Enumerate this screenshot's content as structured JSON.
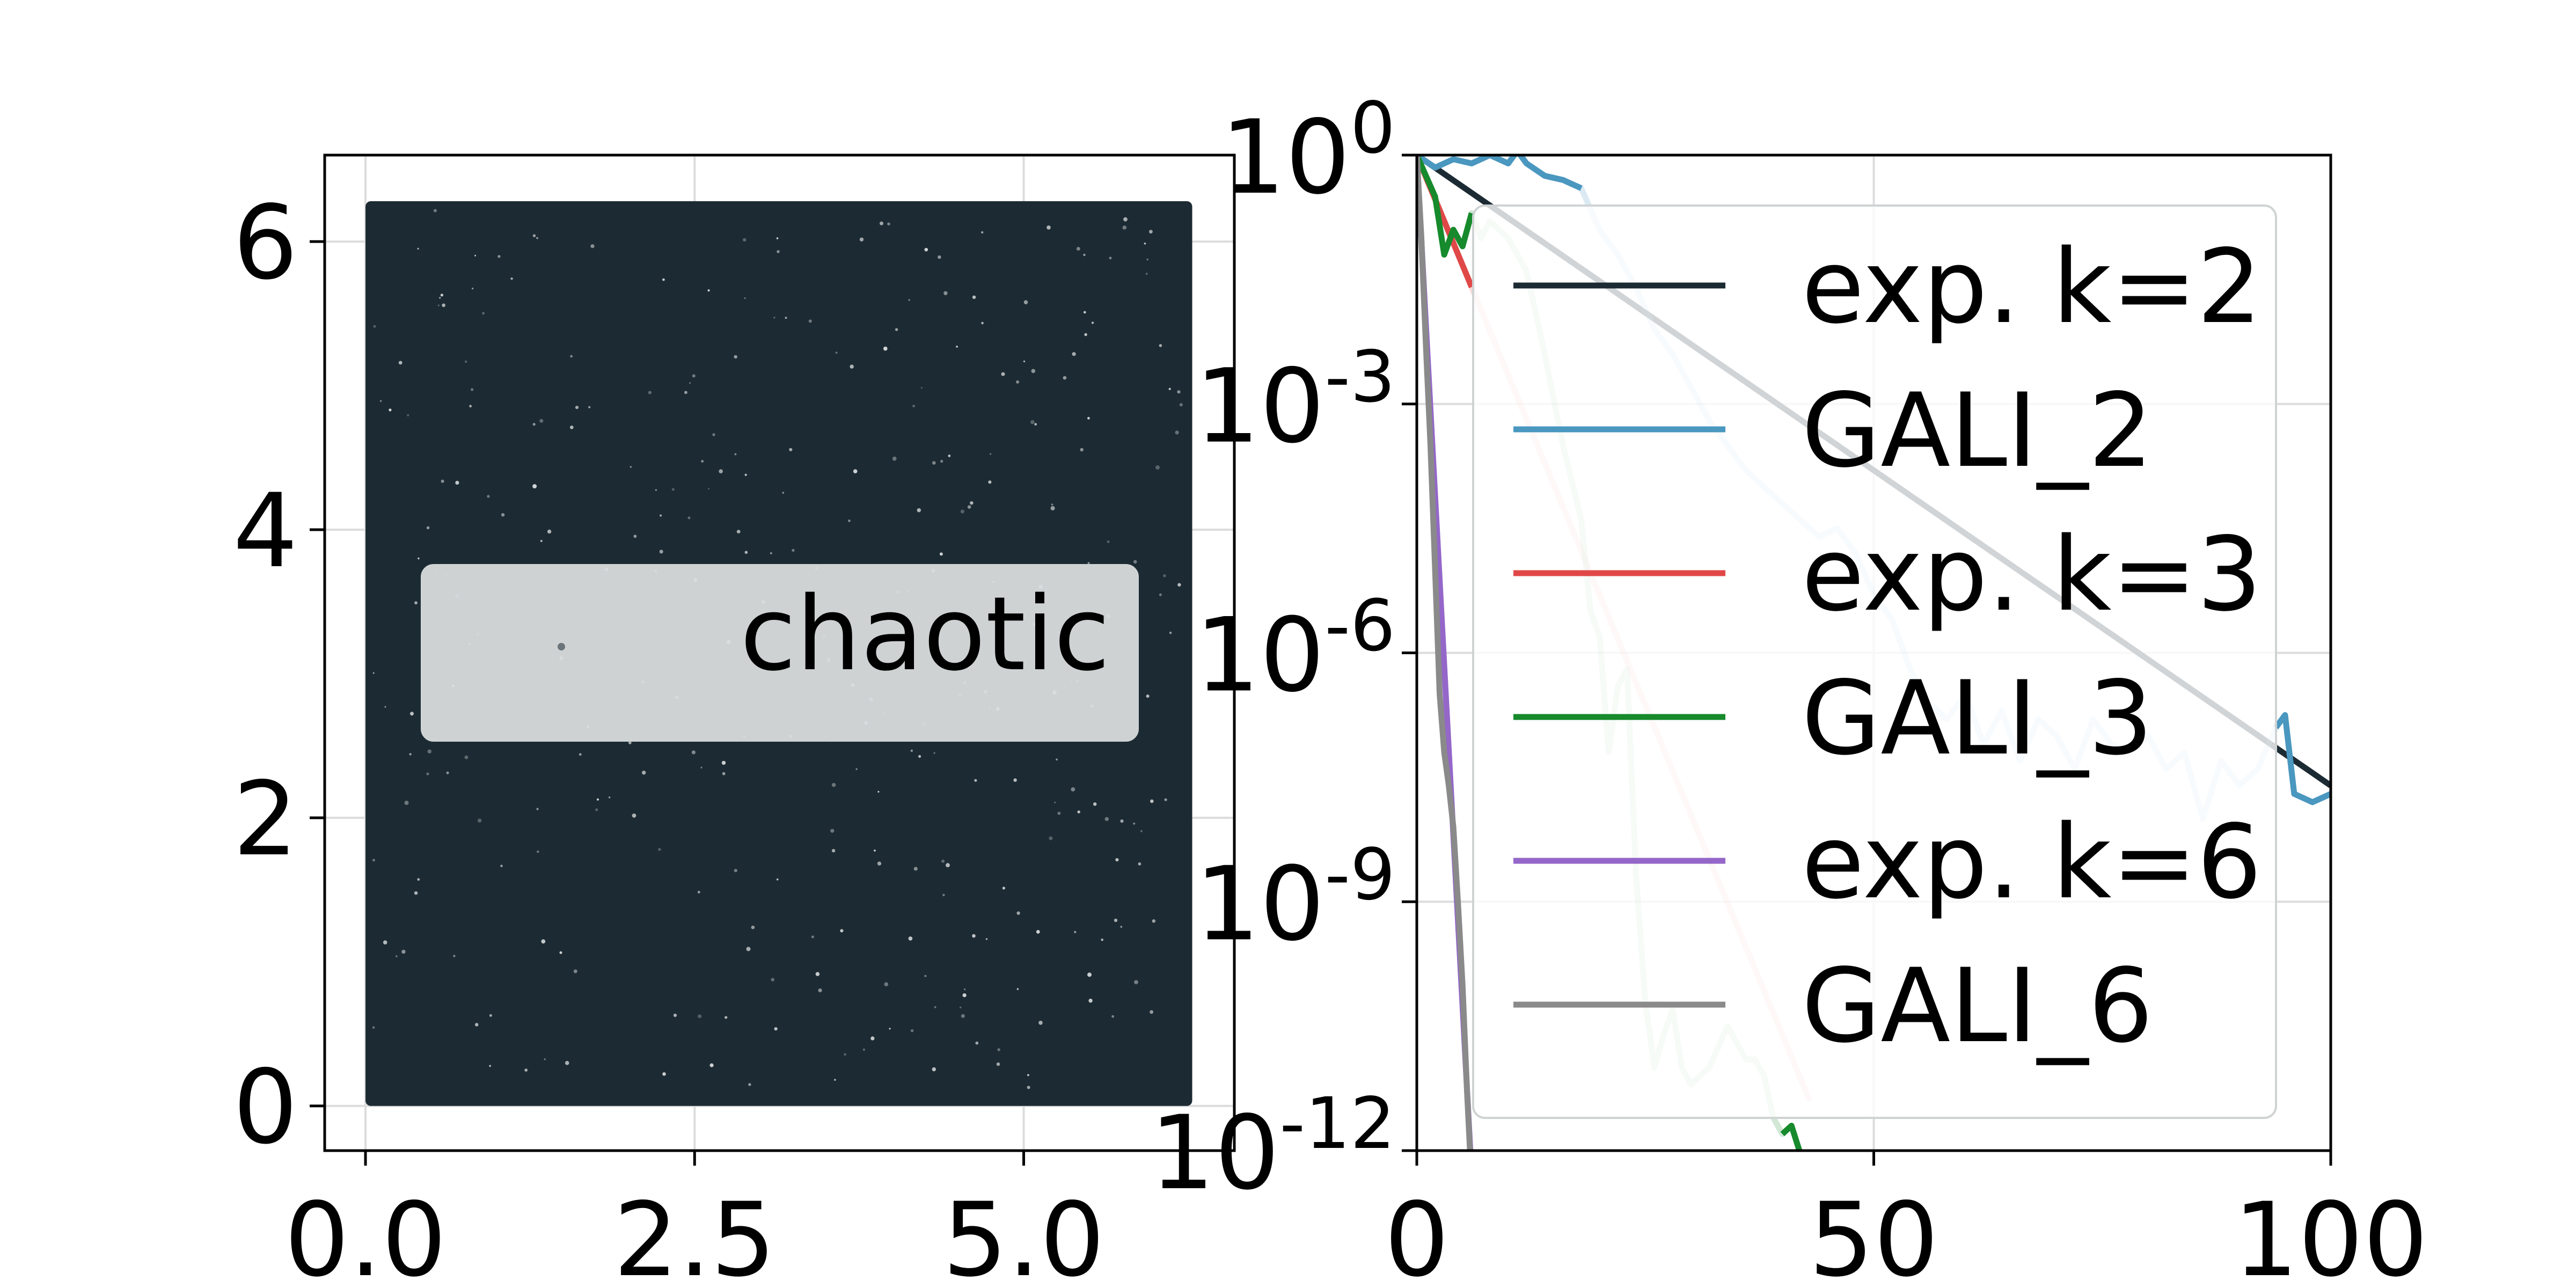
{
  "chart_data": [
    {
      "type": "scatter",
      "xlim": [
        -0.31,
        6.6
      ],
      "ylim": [
        -0.31,
        6.6
      ],
      "xticks": [
        0.0,
        2.5,
        5.0
      ],
      "xtick_labels": [
        "0.0",
        "2.5",
        "5.0"
      ],
      "yticks": [
        0,
        2,
        4,
        6
      ],
      "ytick_labels": [
        "0",
        "2",
        "4",
        "6"
      ],
      "x_range": [
        0.0,
        6.28
      ],
      "y_range": [
        0.0,
        6.28
      ],
      "legend": {
        "entries": [
          "chaotic"
        ],
        "placement": "center"
      },
      "grid": true,
      "point_color": "#1c2b33",
      "series": [
        {
          "name": "chaotic",
          "fill": "uniform",
          "x_range": [
            0.0,
            6.28
          ],
          "y_range": [
            0.0,
            6.28
          ]
        }
      ]
    },
    {
      "type": "line",
      "yscale": "log",
      "xlim": [
        0,
        100
      ],
      "ylim_exponent": [
        -12,
        0
      ],
      "xticks": [
        0,
        50,
        100
      ],
      "xtick_labels": [
        "0",
        "50",
        "100"
      ],
      "yticks_exponent": [
        0,
        -3,
        -6,
        -9,
        -12
      ],
      "ytick_labels": [
        {
          "base": "10",
          "exp": "0"
        },
        {
          "base": "10",
          "exp": "-3"
        },
        {
          "base": "10",
          "exp": "-6"
        },
        {
          "base": "10",
          "exp": "-9"
        },
        {
          "base": "10",
          "exp": "-12"
        }
      ],
      "grid": true,
      "legend": {
        "placement": "upper right"
      },
      "series": [
        {
          "name": "exp. k=2",
          "color": "#1c2b33",
          "kind": "exp",
          "x": [
            0,
            100
          ],
          "log10_y": [
            0,
            -7.6
          ]
        },
        {
          "name": "GALI_2",
          "color": "#4a97bf",
          "kind": "gali",
          "x": [
            0,
            2,
            4,
            6,
            8,
            10,
            11,
            12,
            14,
            16,
            18,
            20,
            22,
            24,
            26,
            28,
            30,
            32,
            34,
            36,
            38,
            40,
            42,
            44,
            46,
            48,
            50,
            52,
            54,
            56,
            58,
            60,
            62,
            64,
            66,
            68,
            70,
            72,
            74,
            76,
            78,
            80,
            82,
            84,
            86,
            88,
            90,
            92,
            94,
            95,
            96,
            98,
            100
          ],
          "log10_y": [
            0,
            -0.15,
            -0.05,
            -0.1,
            0,
            -0.1,
            0.05,
            -0.1,
            -0.25,
            -0.3,
            -0.4,
            -0.9,
            -1.2,
            -1.6,
            -2.1,
            -2.4,
            -2.8,
            -3.2,
            -3.5,
            -3.8,
            -4.0,
            -4.2,
            -4.4,
            -4.6,
            -4.5,
            -4.8,
            -5.3,
            -5.6,
            -6.2,
            -6.6,
            -6.8,
            -6.5,
            -7.1,
            -6.7,
            -7.3,
            -6.8,
            -7.0,
            -7.4,
            -6.8,
            -7.1,
            -7.2,
            -7.0,
            -7.4,
            -7.2,
            -8.0,
            -7.3,
            -7.6,
            -7.4,
            -6.9,
            -6.75,
            -7.7,
            -7.8,
            -7.7
          ],
          "bright_until_x": 18,
          "bright_from_x": 94
        },
        {
          "name": "exp. k=3",
          "color": "#e04848",
          "kind": "exp",
          "x": [
            0,
            43
          ],
          "log10_y": [
            0,
            -11.4
          ],
          "bright_until_x": 6
        },
        {
          "name": "GALI_3",
          "color": "#168a2c",
          "kind": "gali",
          "x": [
            0,
            2,
            3,
            4,
            5,
            6,
            7,
            8,
            10,
            12,
            14,
            16,
            18,
            19,
            20,
            21,
            22,
            23,
            24,
            25,
            26,
            27,
            28,
            29,
            30,
            32,
            34,
            36,
            37,
            38,
            39,
            40,
            41,
            42,
            43
          ],
          "log10_y": [
            0,
            -0.5,
            -1.2,
            -0.9,
            -1.1,
            -0.7,
            -1.0,
            -0.8,
            -1.0,
            -1.4,
            -2.4,
            -3.5,
            -4.4,
            -5.5,
            -5.8,
            -7.2,
            -6.4,
            -6.2,
            -8.7,
            -10.2,
            -11.0,
            -10.6,
            -10.3,
            -11.0,
            -11.2,
            -11.0,
            -10.5,
            -10.9,
            -10.9,
            -11.1,
            -11.6,
            -11.8,
            -11.7,
            -12.05,
            -12.1
          ],
          "bright_until_x": 6,
          "bright_from_x": 40
        },
        {
          "name": "exp. k=6",
          "color": "#9467c9",
          "kind": "exp",
          "x": [
            0,
            6
          ],
          "log10_y": [
            0,
            -12.3
          ]
        },
        {
          "name": "GALI_6",
          "color": "#8a8a8a",
          "kind": "gali",
          "x": [
            0,
            0.5,
            1,
            1.5,
            2,
            2.5,
            3,
            3.5,
            4,
            4.5,
            5,
            5.5,
            6
          ],
          "log10_y": [
            0,
            -1.0,
            -2.3,
            -3.5,
            -5.0,
            -6.5,
            -7.2,
            -7.6,
            -8.1,
            -9.0,
            -10.0,
            -11.3,
            -12.4
          ]
        }
      ]
    }
  ]
}
